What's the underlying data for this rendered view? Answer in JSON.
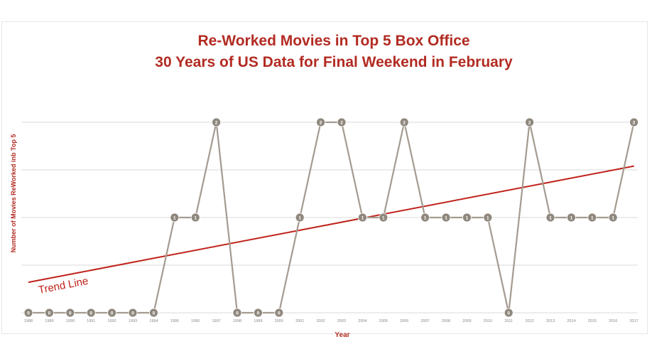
{
  "chart_data": {
    "type": "line",
    "title": "Re-Worked Movies in Top 5 Box Office",
    "subtitle": "30 Years of US Data for Final Weekend in February",
    "xlabel": "Year",
    "ylabel": "Number of Movies ReWorked inb Top 5",
    "categories": [
      "1988",
      "1989",
      "1990",
      "1991",
      "1992",
      "1993",
      "1994",
      "1995",
      "1996",
      "1997",
      "1998",
      "1999",
      "2000",
      "2001",
      "2002",
      "2003",
      "2004",
      "2005",
      "2006",
      "2007",
      "2008",
      "2009",
      "2010",
      "2011",
      "2012",
      "2013",
      "2014",
      "2015",
      "2016",
      "2017"
    ],
    "values": [
      0,
      0,
      0,
      0,
      0,
      0,
      0,
      1,
      1,
      2,
      0,
      0,
      0,
      1,
      2,
      2,
      1,
      1,
      2,
      1,
      1,
      1,
      1,
      0,
      2,
      1,
      1,
      1,
      1,
      2
    ],
    "ylim": [
      0,
      2
    ],
    "grid": true,
    "trend_line": {
      "label": "Trend Line",
      "start": 0.32,
      "end": 1.54
    },
    "colors": {
      "title": "#b22b22",
      "series": "#a49b90",
      "marker": "#8f877d",
      "trend": "#c0221b",
      "grid": "#d9d9d9",
      "axis_label": "#b22b22"
    }
  }
}
